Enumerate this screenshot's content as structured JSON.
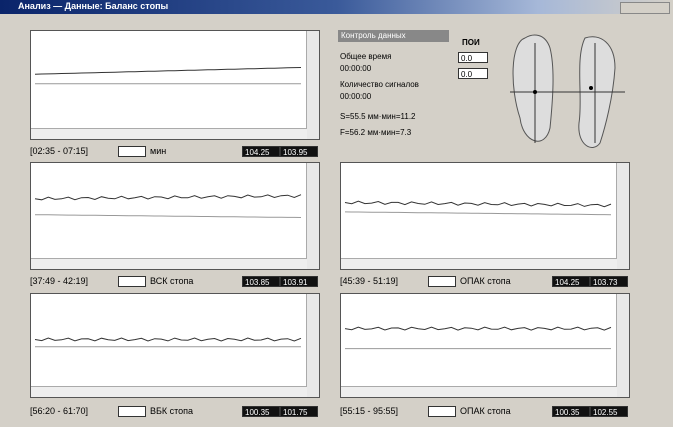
{
  "window": {
    "title": "Анализ — Данные: Баланс стопы"
  },
  "info": {
    "header": "Контроль данных",
    "total_time_label": "Общее время",
    "total_time": "00:00:00",
    "signals_label": "Количество сигналов",
    "signals_time": "00:00:00",
    "line1": "S=55.5  мм·мин=11.2",
    "line2": "F=56.2  мм·мин=7.3",
    "box_title": "ПОИ",
    "box_value1": "0.0",
    "box_value2": "0.0"
  },
  "panels": [
    {
      "range": "[02:35 - 07:15]",
      "unit": "мин",
      "value1": "104.25",
      "value2": "103.95"
    },
    {
      "range": "[37:49 - 42:19]",
      "unit": "ВСК стопа",
      "value1": "103.85",
      "value2": "103.91"
    },
    {
      "range": "[45:39 - 51:19]",
      "unit": "ОПАК стопа",
      "value1": "104.25",
      "value2": "103.73"
    },
    {
      "range": "[56:20 - 61:70]",
      "unit": "ВБК стопа",
      "value1": "100.35",
      "value2": "101.75"
    },
    {
      "range": "[55:15 - 95:55]",
      "unit": "ОПАК стопа",
      "value1": "100.35",
      "value2": "102.55"
    }
  ]
}
